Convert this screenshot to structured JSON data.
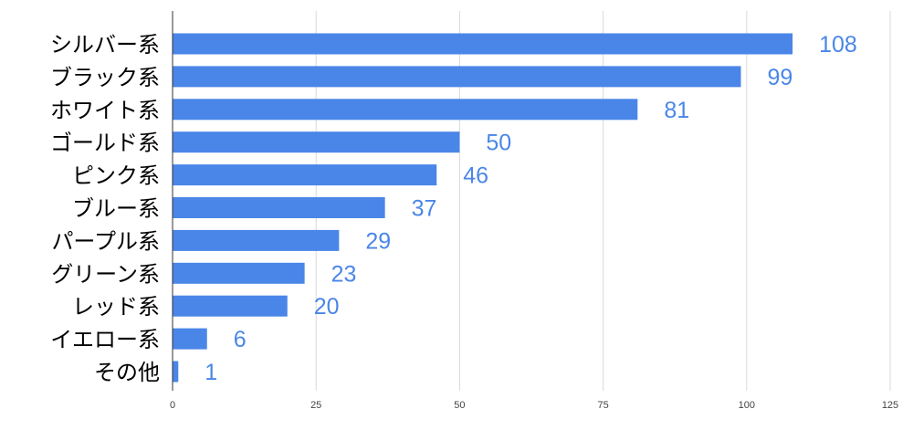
{
  "chart_data": {
    "type": "bar",
    "orientation": "horizontal",
    "title": "",
    "xlabel": "",
    "ylabel": "",
    "categories": [
      "シルバー系",
      "ブラック系",
      "ホワイト系",
      "ゴールド系",
      "ピンク系",
      "ブルー系",
      "パープル系",
      "グリーン系",
      "レッド系",
      "イエロー系",
      "その他"
    ],
    "values": [
      108,
      99,
      81,
      50,
      46,
      37,
      29,
      23,
      20,
      6,
      1
    ],
    "xlim": [
      0,
      125
    ],
    "xticks": [
      0,
      25,
      50,
      75,
      100,
      125
    ],
    "tick_labels": [
      "0",
      "25",
      "50",
      "75",
      "100",
      "125"
    ],
    "grid": "vertical",
    "legend": "none",
    "data_labels": true,
    "colors": {
      "bar": "#4a86e8",
      "value_label": "#4a86e8"
    }
  }
}
